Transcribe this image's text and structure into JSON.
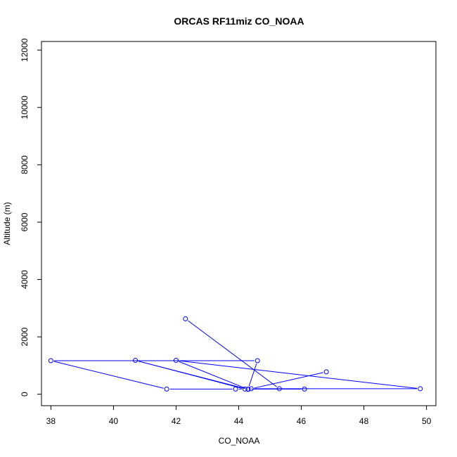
{
  "chart_data": {
    "type": "line",
    "title": "ORCAS RF11miz CO_NOAA",
    "xlabel": "CO_NOAA",
    "ylabel": "Altitude (m)",
    "xlim": [
      37.7,
      50.3
    ],
    "ylim": [
      -400,
      12300
    ],
    "x_ticks": [
      "38",
      "40",
      "42",
      "44",
      "46",
      "48",
      "50"
    ],
    "y_ticks": [
      "0",
      "2000",
      "4000",
      "6000",
      "8000",
      "10000",
      "12000"
    ],
    "grid": false,
    "colors": {
      "series": "#0000ff",
      "axes": "#000000"
    },
    "series": [
      {
        "x": [
          42.3,
          45.3,
          46.1,
          44.3,
          44.6,
          38.0,
          41.7,
          43.9,
          44.2,
          40.7,
          44.3,
          42.0,
          49.8,
          44.4,
          46.8
        ],
        "y": [
          2630,
          190,
          180,
          180,
          1170,
          1170,
          180,
          180,
          180,
          1180,
          170,
          1180,
          190,
          190,
          780
        ]
      }
    ]
  }
}
